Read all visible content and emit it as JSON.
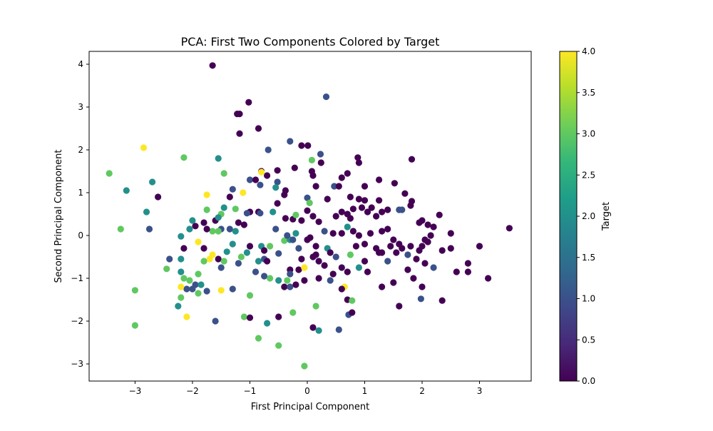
{
  "chart_data": {
    "type": "scatter",
    "title": "PCA: First Two Components Colored by Target",
    "xlabel": "First Principal Component",
    "ylabel": "Second Principal Component",
    "xlim": [
      -3.8,
      3.9
    ],
    "ylim": [
      -3.4,
      4.3
    ],
    "xticks": [
      -3,
      -2,
      -1,
      0,
      1,
      2,
      3
    ],
    "yticks": [
      -3,
      -2,
      -1,
      0,
      1,
      2,
      3,
      4
    ],
    "xtick_labels": [
      "−3",
      "−2",
      "−1",
      "0",
      "1",
      "2",
      "3"
    ],
    "ytick_labels": [
      "−3",
      "−2",
      "−1",
      "0",
      "1",
      "2",
      "3",
      "4"
    ],
    "grid": false,
    "legend": "none",
    "colorbar": {
      "label": "Target",
      "colormap": "viridis",
      "range": [
        0,
        4
      ],
      "ticks": [
        0,
        0.5,
        1,
        1.5,
        2,
        2.5,
        3,
        3.5,
        4
      ],
      "tick_labels": [
        "0.0",
        "0.5",
        "1.0",
        "1.5",
        "2.0",
        "2.5",
        "3.0",
        "3.5",
        "4.0"
      ],
      "colors": [
        "#440154",
        "#482878",
        "#3e4989",
        "#31688e",
        "#26828e",
        "#1f9e89",
        "#35b779",
        "#6ece58",
        "#b5de2b",
        "#fde725"
      ]
    },
    "points": [
      [
        -1.65,
        3.97,
        0
      ],
      [
        -1.02,
        3.11,
        0
      ],
      [
        -1.22,
        2.84,
        0
      ],
      [
        -1.18,
        2.84,
        0
      ],
      [
        -1.18,
        2.38,
        0
      ],
      [
        -0.85,
        2.5,
        0
      ],
      [
        0.33,
        3.24,
        1
      ],
      [
        -0.3,
        2.2,
        1
      ],
      [
        -0.1,
        2.1,
        0
      ],
      [
        0.01,
        2.1,
        0
      ],
      [
        0.23,
        1.9,
        1
      ],
      [
        0.88,
        1.82,
        0
      ],
      [
        0.9,
        1.7,
        0
      ],
      [
        1.82,
        1.78,
        0
      ],
      [
        -0.68,
        2.0,
        1
      ],
      [
        -0.7,
        1.4,
        0
      ],
      [
        -0.8,
        1.5,
        0
      ],
      [
        -0.52,
        1.52,
        0
      ],
      [
        -0.22,
        1.58,
        0
      ],
      [
        0.08,
        1.5,
        0
      ],
      [
        0.1,
        1.4,
        0
      ],
      [
        0.24,
        1.7,
        0
      ],
      [
        0.6,
        1.35,
        0
      ],
      [
        0.7,
        1.45,
        0
      ],
      [
        1.0,
        1.15,
        0
      ],
      [
        1.25,
        1.3,
        0
      ],
      [
        1.52,
        1.22,
        0
      ],
      [
        -1.0,
        1.3,
        1
      ],
      [
        -0.82,
        1.18,
        1
      ],
      [
        -0.52,
        1.25,
        1
      ],
      [
        -0.9,
        1.3,
        0
      ],
      [
        -0.38,
        1.05,
        0
      ],
      [
        -0.4,
        0.95,
        0
      ],
      [
        0.15,
        1.15,
        0
      ],
      [
        0.47,
        1.15,
        1
      ],
      [
        0.55,
        1.15,
        0
      ],
      [
        0.75,
        0.9,
        0
      ],
      [
        0.9,
        0.85,
        0
      ],
      [
        1.0,
        0.82,
        0
      ],
      [
        1.25,
        0.82,
        0
      ],
      [
        1.7,
        0.98,
        0
      ],
      [
        1.82,
        0.8,
        0
      ],
      [
        -1.3,
        1.08,
        1
      ],
      [
        -0.55,
        1.12,
        2
      ],
      [
        -0.8,
        1.48,
        4
      ],
      [
        -1.12,
        1.0,
        4
      ],
      [
        0.08,
        1.76,
        3
      ],
      [
        -1.35,
        0.9,
        0
      ],
      [
        -0.85,
        0.55,
        0
      ],
      [
        -1.0,
        0.55,
        0
      ],
      [
        -0.82,
        0.52,
        1
      ],
      [
        -1.05,
        0.52,
        1
      ],
      [
        -0.52,
        0.75,
        0
      ],
      [
        -0.38,
        0.4,
        0
      ],
      [
        -0.25,
        0.38,
        0
      ],
      [
        -0.1,
        0.35,
        0
      ],
      [
        0.0,
        0.58,
        0
      ],
      [
        0.1,
        0.45,
        0
      ],
      [
        0.2,
        0.32,
        0
      ],
      [
        0.35,
        0.85,
        0
      ],
      [
        0.5,
        0.45,
        0
      ],
      [
        0.6,
        0.55,
        0
      ],
      [
        0.7,
        0.5,
        0
      ],
      [
        0.75,
        0.4,
        0
      ],
      [
        0.8,
        0.62,
        0
      ],
      [
        0.95,
        0.65,
        0
      ],
      [
        1.05,
        0.55,
        0
      ],
      [
        1.12,
        0.65,
        0
      ],
      [
        1.2,
        0.45,
        0
      ],
      [
        1.3,
        0.55,
        0
      ],
      [
        1.4,
        0.6,
        0
      ],
      [
        1.6,
        0.6,
        1
      ],
      [
        1.65,
        0.6,
        1
      ],
      [
        1.8,
        0.7,
        0
      ],
      [
        1.95,
        0.3,
        0
      ],
      [
        2.0,
        0.35,
        0
      ],
      [
        2.1,
        0.25,
        0
      ],
      [
        2.2,
        0.2,
        0
      ],
      [
        2.3,
        0.48,
        0
      ],
      [
        2.5,
        0.05,
        0
      ],
      [
        3.52,
        0.17,
        0
      ],
      [
        0.0,
        0.88,
        1
      ],
      [
        0.04,
        0.76,
        3
      ],
      [
        -0.6,
        0.55,
        2
      ],
      [
        -1.5,
        0.5,
        3
      ],
      [
        -1.45,
        0.65,
        2
      ],
      [
        -1.25,
        0.62,
        3
      ],
      [
        -1.2,
        0.3,
        0
      ],
      [
        -1.1,
        0.25,
        0
      ],
      [
        -1.5,
        0.15,
        1
      ],
      [
        -1.6,
        0.35,
        0
      ],
      [
        -1.65,
        0.1,
        3
      ],
      [
        -1.55,
        0.42,
        2
      ],
      [
        -1.8,
        0.3,
        0
      ],
      [
        -1.75,
        0.15,
        0
      ],
      [
        -1.95,
        0.22,
        0
      ],
      [
        -2.0,
        0.35,
        2
      ],
      [
        -2.05,
        0.15,
        2
      ],
      [
        -2.2,
        -0.02,
        2
      ],
      [
        -2.15,
        -0.3,
        0
      ],
      [
        -2.4,
        -0.55,
        1
      ],
      [
        -2.2,
        -0.55,
        2
      ],
      [
        -2.45,
        -0.78,
        3
      ],
      [
        -2.6,
        0.9,
        0
      ],
      [
        -2.8,
        0.55,
        2
      ],
      [
        -2.75,
        0.15,
        1
      ],
      [
        -3.15,
        1.05,
        2
      ],
      [
        -3.25,
        0.15,
        3
      ],
      [
        -3.45,
        1.45,
        3
      ],
      [
        -2.7,
        1.25,
        2
      ],
      [
        -2.85,
        2.05,
        4
      ],
      [
        -2.15,
        1.82,
        3
      ],
      [
        -1.55,
        1.8,
        2
      ],
      [
        -1.45,
        1.45,
        3
      ],
      [
        -1.75,
        0.95,
        4
      ],
      [
        -1.75,
        0.6,
        3
      ],
      [
        -1.55,
        0.1,
        3
      ],
      [
        -1.35,
        0.15,
        1
      ],
      [
        -1.4,
        -0.38,
        2
      ],
      [
        -1.3,
        -0.2,
        2
      ],
      [
        -1.25,
        0.1,
        2
      ],
      [
        -1.15,
        -0.5,
        3
      ],
      [
        -1.2,
        -0.65,
        1
      ],
      [
        -1.05,
        -0.4,
        2
      ],
      [
        -1.0,
        -0.25,
        0
      ],
      [
        -0.9,
        -0.85,
        1
      ],
      [
        -0.85,
        -0.6,
        2
      ],
      [
        -0.8,
        -0.25,
        2
      ],
      [
        -0.75,
        -0.35,
        0
      ],
      [
        -0.75,
        -0.55,
        1
      ],
      [
        -0.7,
        -0.6,
        0
      ],
      [
        -0.65,
        -0.25,
        3
      ],
      [
        -0.75,
        -0.95,
        1
      ],
      [
        -0.65,
        -1.0,
        3
      ],
      [
        -0.5,
        -0.42,
        1
      ],
      [
        -0.4,
        -0.12,
        3
      ],
      [
        -0.3,
        -0.1,
        2
      ],
      [
        -0.3,
        -0.8,
        0
      ],
      [
        -0.25,
        -0.1,
        1
      ],
      [
        -0.3,
        -0.9,
        1
      ],
      [
        -0.35,
        -1.05,
        3
      ],
      [
        -0.5,
        -1.05,
        2
      ],
      [
        -0.4,
        -1.2,
        0
      ],
      [
        -0.3,
        -1.2,
        1
      ],
      [
        -0.2,
        -1.15,
        0
      ],
      [
        -0.15,
        -0.8,
        0
      ],
      [
        -0.1,
        -0.55,
        0
      ],
      [
        -0.05,
        -0.75,
        4
      ],
      [
        -0.05,
        -1.05,
        0
      ],
      [
        0.1,
        -0.5,
        0
      ],
      [
        0.15,
        -0.25,
        0
      ],
      [
        0.2,
        -0.6,
        0
      ],
      [
        0.2,
        -1.0,
        0
      ],
      [
        0.35,
        -0.3,
        2
      ],
      [
        0.4,
        -0.4,
        0
      ],
      [
        0.5,
        -0.5,
        1
      ],
      [
        0.6,
        -0.75,
        0
      ],
      [
        0.7,
        -0.85,
        0
      ],
      [
        0.75,
        -0.45,
        3
      ],
      [
        0.85,
        -0.25,
        0
      ],
      [
        0.9,
        -0.75,
        2
      ],
      [
        1.0,
        -0.6,
        0
      ],
      [
        1.05,
        -0.85,
        0
      ],
      [
        1.2,
        -0.3,
        0
      ],
      [
        1.25,
        -0.4,
        0
      ],
      [
        1.3,
        -0.4,
        0
      ],
      [
        1.4,
        -0.6,
        1
      ],
      [
        1.45,
        -0.25,
        0
      ],
      [
        1.55,
        -0.4,
        0
      ],
      [
        1.65,
        -0.3,
        0
      ],
      [
        1.75,
        -0.45,
        1
      ],
      [
        1.75,
        -0.8,
        0
      ],
      [
        1.85,
        -1.0,
        0
      ],
      [
        1.9,
        -0.55,
        0
      ],
      [
        2.0,
        -0.25,
        0
      ],
      [
        2.05,
        -0.65,
        0
      ],
      [
        2.1,
        -0.15,
        0
      ],
      [
        2.2,
        -0.75,
        1
      ],
      [
        2.35,
        -0.35,
        0
      ],
      [
        2.5,
        -0.3,
        0
      ],
      [
        2.6,
        -0.85,
        0
      ],
      [
        2.8,
        -0.65,
        0
      ],
      [
        2.8,
        -0.85,
        0
      ],
      [
        3.0,
        -0.25,
        0
      ],
      [
        3.15,
        -1.0,
        0
      ],
      [
        0.05,
        -0.05,
        0
      ],
      [
        0.3,
        0.1,
        1
      ],
      [
        0.45,
        0.05,
        0
      ],
      [
        0.6,
        0.05,
        0
      ],
      [
        0.7,
        0.2,
        2
      ],
      [
        0.8,
        0.1,
        0
      ],
      [
        0.9,
        0.0,
        0
      ],
      [
        1.0,
        -0.2,
        0
      ],
      [
        1.1,
        0.05,
        0
      ],
      [
        1.3,
        0.1,
        0
      ],
      [
        1.4,
        0.15,
        0
      ],
      [
        1.5,
        -0.1,
        0
      ],
      [
        1.6,
        -0.2,
        0
      ],
      [
        1.8,
        -0.25,
        0
      ],
      [
        1.95,
        -0.35,
        0
      ],
      [
        2.05,
        -0.1,
        0
      ],
      [
        2.15,
        0.0,
        0
      ],
      [
        -0.55,
        0.15,
        1
      ],
      [
        -0.35,
        0.0,
        1
      ],
      [
        -0.2,
        0.05,
        2
      ],
      [
        -0.15,
        -0.3,
        1
      ],
      [
        0.0,
        -0.1,
        0
      ],
      [
        0.15,
        -0.45,
        0
      ],
      [
        0.3,
        -0.7,
        0
      ],
      [
        0.45,
        -0.9,
        0
      ],
      [
        -1.8,
        -0.3,
        0
      ],
      [
        -1.9,
        -0.15,
        4
      ],
      [
        -1.7,
        -0.55,
        4
      ],
      [
        -1.65,
        -0.45,
        4
      ],
      [
        -1.55,
        -0.55,
        0
      ],
      [
        -1.5,
        -0.75,
        1
      ],
      [
        -1.45,
        -0.6,
        3
      ],
      [
        -1.8,
        -0.6,
        3
      ],
      [
        -1.9,
        -0.9,
        3
      ],
      [
        -1.95,
        -1.15,
        1
      ],
      [
        -2.05,
        -1.05,
        3
      ],
      [
        -2.15,
        -1.0,
        3
      ],
      [
        -2.2,
        -0.85,
        2
      ],
      [
        -1.85,
        -1.15,
        2
      ],
      [
        -1.75,
        -1.3,
        1
      ],
      [
        -1.9,
        -1.35,
        3
      ],
      [
        -2.1,
        -1.25,
        1
      ],
      [
        -2.0,
        -1.25,
        1
      ],
      [
        -2.2,
        -1.2,
        4
      ],
      [
        -2.2,
        -1.45,
        3
      ],
      [
        -2.25,
        -1.65,
        2
      ],
      [
        -2.1,
        -1.9,
        4
      ],
      [
        -1.6,
        -2.0,
        1
      ],
      [
        -1.5,
        -1.28,
        4
      ],
      [
        -1.3,
        -1.25,
        1
      ],
      [
        -1.1,
        -1.9,
        3
      ],
      [
        -1.0,
        -1.4,
        3
      ],
      [
        -1.0,
        -1.92,
        0
      ],
      [
        -0.85,
        -2.4,
        3
      ],
      [
        -0.7,
        -2.05,
        2
      ],
      [
        -0.5,
        -1.9,
        0
      ],
      [
        -0.5,
        -2.57,
        3
      ],
      [
        -0.25,
        -1.8,
        3
      ],
      [
        -0.05,
        -3.05,
        3
      ],
      [
        0.1,
        -2.15,
        0
      ],
      [
        0.15,
        -1.65,
        3
      ],
      [
        0.2,
        -2.22,
        2
      ],
      [
        0.55,
        -2.2,
        1
      ],
      [
        0.65,
        -1.2,
        4
      ],
      [
        0.7,
        -1.5,
        0
      ],
      [
        0.72,
        -1.85,
        1
      ],
      [
        0.78,
        -1.8,
        0
      ],
      [
        0.78,
        -1.52,
        3
      ],
      [
        0.4,
        -1.05,
        1
      ],
      [
        0.6,
        -1.25,
        0
      ],
      [
        1.3,
        -1.2,
        0
      ],
      [
        1.5,
        -1.1,
        0
      ],
      [
        1.6,
        -1.65,
        0
      ],
      [
        1.98,
        -1.48,
        1
      ],
      [
        2.0,
        -1.2,
        0
      ],
      [
        2.35,
        -1.52,
        0
      ],
      [
        -3.0,
        -1.28,
        3
      ],
      [
        -3.0,
        -2.1,
        3
      ],
      [
        -0.2,
        0.48,
        3
      ],
      [
        -0.05,
        -0.75,
        4
      ]
    ]
  }
}
